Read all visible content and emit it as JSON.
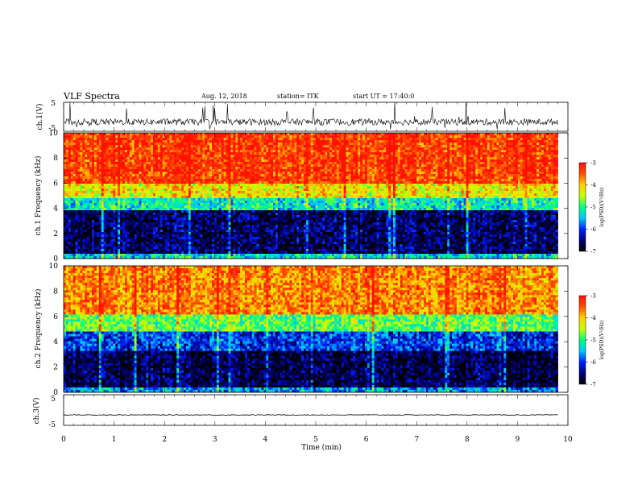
{
  "header": {
    "title": "VLF Spectra",
    "date": "Aug. 12, 2018",
    "station": "station= ITK",
    "start": "start UT = 17:40:0"
  },
  "chart_data": [
    {
      "type": "line",
      "panel": "ch1_waveform",
      "ylabel": "ch.1(V)",
      "yticks": [
        "5",
        "-5"
      ],
      "ylim": [
        -5,
        5
      ],
      "x_unit": "min",
      "xlim": [
        0,
        10
      ],
      "data_end_min": 9.8,
      "baseline_v": -1.8,
      "noise_range_v": [
        -4.5,
        0.5
      ],
      "spikes_reach_v": 5,
      "color": "#000000"
    },
    {
      "type": "heatmap",
      "panel": "ch1_spectrogram",
      "ylabel": "ch.1 Frequency (kHz)",
      "yticks": [
        "0",
        "2",
        "4",
        "6",
        "8",
        "10"
      ],
      "ylim": [
        0,
        10
      ],
      "xlim": [
        0,
        10
      ],
      "data_end_min": 9.8,
      "colorbar": {
        "label": "log(PSD)(V²/Hz)",
        "ticks": [
          "-3",
          "-4",
          "-5",
          "-6",
          "-7"
        ],
        "range": [
          -7,
          -3
        ]
      },
      "bands": [
        {
          "f_khz": [
            0,
            0.4
          ],
          "log_psd": -5.3
        },
        {
          "f_khz": [
            0.4,
            3.8
          ],
          "log_psd": -6.6
        },
        {
          "f_khz": [
            3.8,
            4.8
          ],
          "log_psd": -5.2
        },
        {
          "f_khz": [
            4.8,
            6.0
          ],
          "log_psd": -4.2
        },
        {
          "f_khz": [
            6.0,
            10.0
          ],
          "log_psd": -3.3
        }
      ]
    },
    {
      "type": "heatmap",
      "panel": "ch2_spectrogram",
      "ylabel": "ch.2 Frequency (kHz)",
      "yticks": [
        "0",
        "2",
        "4",
        "6",
        "8",
        "10"
      ],
      "ylim": [
        0,
        10
      ],
      "xlim": [
        0,
        10
      ],
      "data_end_min": 9.8,
      "colorbar": {
        "label": "log(PSD)(V²/Hz)",
        "ticks": [
          "-3",
          "-4",
          "-5",
          "-6",
          "-7"
        ],
        "range": [
          -7,
          -3
        ]
      },
      "bands": [
        {
          "f_khz": [
            0,
            0.3
          ],
          "log_psd": -5.6
        },
        {
          "f_khz": [
            0.3,
            3.2
          ],
          "log_psd": -6.7
        },
        {
          "f_khz": [
            3.2,
            4.8
          ],
          "log_psd": -6.0
        },
        {
          "f_khz": [
            4.8,
            6.2
          ],
          "log_psd": -4.8
        },
        {
          "f_khz": [
            6.2,
            10.0
          ],
          "log_psd": -3.7
        }
      ]
    },
    {
      "type": "line",
      "panel": "ch3_waveform",
      "ylabel": "ch.3(V)",
      "yticks": [
        "5",
        "-5"
      ],
      "ylim": [
        -5,
        5
      ],
      "xlim": [
        0,
        10
      ],
      "data_end_min": 9.8,
      "baseline_v": -1.6,
      "noise_range_v": [
        -1.7,
        -1.5
      ],
      "color": "#000000"
    }
  ],
  "xaxis": {
    "label": "Time (min)",
    "ticks": [
      "0",
      "1",
      "2",
      "3",
      "4",
      "5",
      "6",
      "7",
      "8",
      "9",
      "10"
    ]
  },
  "colormap": [
    "#000000",
    "#00007a",
    "#0020ff",
    "#00c8ff",
    "#00ff80",
    "#c8ff00",
    "#ffd000",
    "#ff5000",
    "#ff1000"
  ]
}
